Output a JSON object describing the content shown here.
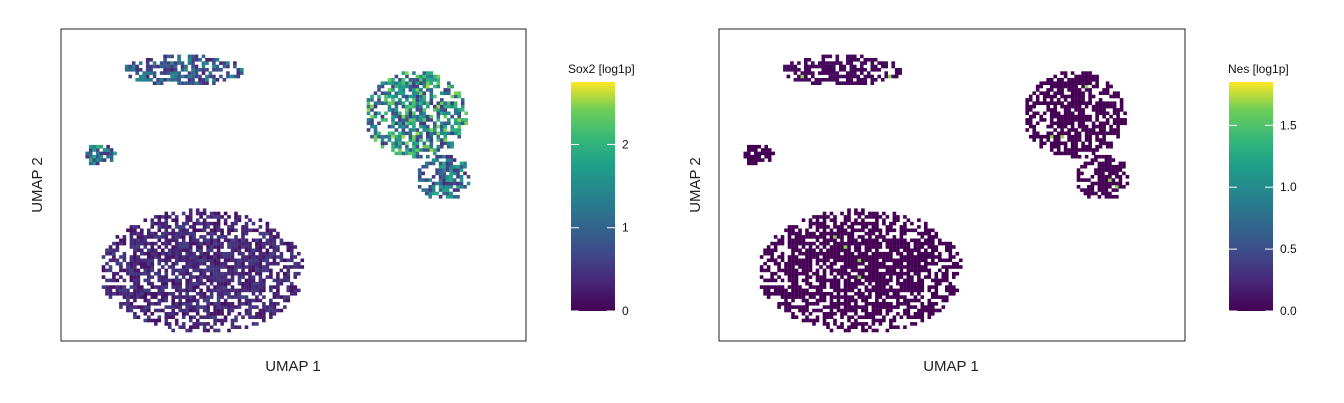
{
  "chart_data": [
    {
      "type": "scatter",
      "subtype": "hexbin-umap",
      "title": "",
      "xlabel": "UMAP 1",
      "ylabel": "UMAP 2",
      "xlim": [
        0,
        10
      ],
      "ylim": [
        0,
        7
      ],
      "grid": false,
      "legend": "right",
      "colorbar": {
        "title": "Sox2 [log1p]",
        "min": 0,
        "max": 2.75,
        "ticks": [
          0,
          1,
          2
        ],
        "tick_labels": [
          "0",
          "1",
          "2"
        ],
        "colormap": "viridis"
      },
      "clusters": [
        {
          "cx": 2.6,
          "cy": 6.1,
          "rx": 1.3,
          "ry": 0.35,
          "mean": 0.9
        },
        {
          "cx": 7.6,
          "cy": 5.1,
          "rx": 1.1,
          "ry": 1.0,
          "mean": 1.5
        },
        {
          "cx": 8.2,
          "cy": 3.7,
          "rx": 0.6,
          "ry": 0.5,
          "mean": 1.1
        },
        {
          "cx": 0.8,
          "cy": 4.2,
          "rx": 0.35,
          "ry": 0.25,
          "mean": 1.2
        },
        {
          "cx": 3.0,
          "cy": 1.6,
          "rx": 2.2,
          "ry": 1.4,
          "mean": 0.35
        }
      ]
    },
    {
      "type": "scatter",
      "subtype": "hexbin-umap",
      "title": "",
      "xlabel": "UMAP 1",
      "ylabel": "UMAP 2",
      "xlim": [
        0,
        10
      ],
      "ylim": [
        0,
        7
      ],
      "grid": false,
      "legend": "right",
      "colorbar": {
        "title": "Nes [log1p]",
        "min": 0,
        "max": 1.85,
        "ticks": [
          0.0,
          0.5,
          1.0,
          1.5
        ],
        "tick_labels": [
          "0.0",
          "0.5",
          "1.0",
          "1.5"
        ],
        "colormap": "viridis"
      },
      "clusters": [
        {
          "cx": 2.6,
          "cy": 6.1,
          "rx": 1.3,
          "ry": 0.35,
          "mean": 0.05
        },
        {
          "cx": 7.6,
          "cy": 5.1,
          "rx": 1.1,
          "ry": 1.0,
          "mean": 0.0
        },
        {
          "cx": 8.2,
          "cy": 3.7,
          "rx": 0.6,
          "ry": 0.5,
          "mean": 0.0
        },
        {
          "cx": 0.8,
          "cy": 4.2,
          "rx": 0.35,
          "ry": 0.25,
          "mean": 0.0
        },
        {
          "cx": 3.0,
          "cy": 1.6,
          "rx": 2.2,
          "ry": 1.4,
          "mean": 0.0
        }
      ]
    }
  ]
}
